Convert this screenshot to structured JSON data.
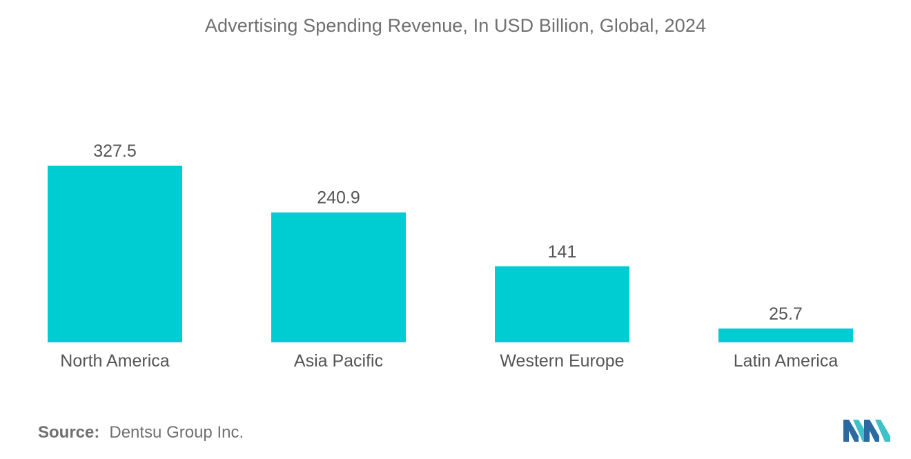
{
  "chart_data": {
    "type": "bar",
    "title": "Advertising Spending Revenue, In USD Billion, Global, 2024",
    "categories": [
      "North America",
      "Asia Pacific",
      "Western Europe",
      "Latin America"
    ],
    "values": [
      327.5,
      240.9,
      141,
      25.7
    ],
    "value_labels": [
      "327.5",
      "240.9",
      "141",
      "25.7"
    ],
    "xlabel": "",
    "ylabel": "",
    "ylim": [
      0,
      327.5
    ],
    "grid": false,
    "legend": "none",
    "bar_color": "#00cdd2"
  },
  "source": {
    "label": "Source:",
    "text": "Dentsu Group Inc."
  },
  "colors": {
    "bar": "#00cdd2",
    "text": "#555555",
    "title": "#6f6f6f",
    "logo_dark": "#2a6aa0",
    "logo_light": "#3fc1c9"
  },
  "icons": {
    "brand_logo": "mordor-intelligence-logo-icon"
  }
}
